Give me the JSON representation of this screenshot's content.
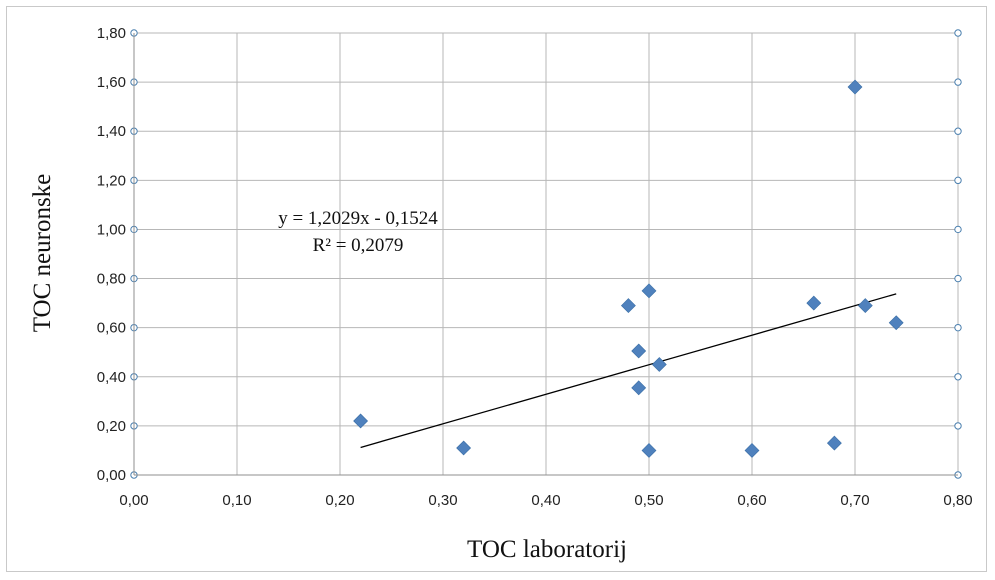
{
  "chart_data": {
    "type": "scatter",
    "title": "",
    "xlabel": "TOC laboratorij",
    "ylabel": "TOC neuronske",
    "xlim": [
      0,
      0.8
    ],
    "ylim": [
      0,
      1.8
    ],
    "x_ticks": [
      "0,00",
      "0,10",
      "0,20",
      "0,30",
      "0,40",
      "0,50",
      "0,60",
      "0,70",
      "0,80"
    ],
    "y_ticks": [
      "0,00",
      "0,20",
      "0,40",
      "0,60",
      "0,80",
      "1,00",
      "1,20",
      "1,40",
      "1,60",
      "1,80"
    ],
    "grid": true,
    "legend": "none",
    "marker_color": "#4f81bd",
    "points": [
      {
        "x": 0.22,
        "y": 0.22
      },
      {
        "x": 0.32,
        "y": 0.11
      },
      {
        "x": 0.48,
        "y": 0.69
      },
      {
        "x": 0.49,
        "y": 0.505
      },
      {
        "x": 0.49,
        "y": 0.355
      },
      {
        "x": 0.5,
        "y": 0.75
      },
      {
        "x": 0.5,
        "y": 0.1
      },
      {
        "x": 0.51,
        "y": 0.45
      },
      {
        "x": 0.6,
        "y": 0.1
      },
      {
        "x": 0.66,
        "y": 0.7
      },
      {
        "x": 0.68,
        "y": 0.13
      },
      {
        "x": 0.7,
        "y": 1.58
      },
      {
        "x": 0.71,
        "y": 0.69
      },
      {
        "x": 0.74,
        "y": 0.62
      }
    ],
    "trendline": {
      "slope": 1.2029,
      "intercept": -0.1524,
      "x_range": [
        0.22,
        0.74
      ],
      "equation": "y = 1,2029x - 0,1524",
      "r_squared": "R² = 0,2079"
    }
  }
}
